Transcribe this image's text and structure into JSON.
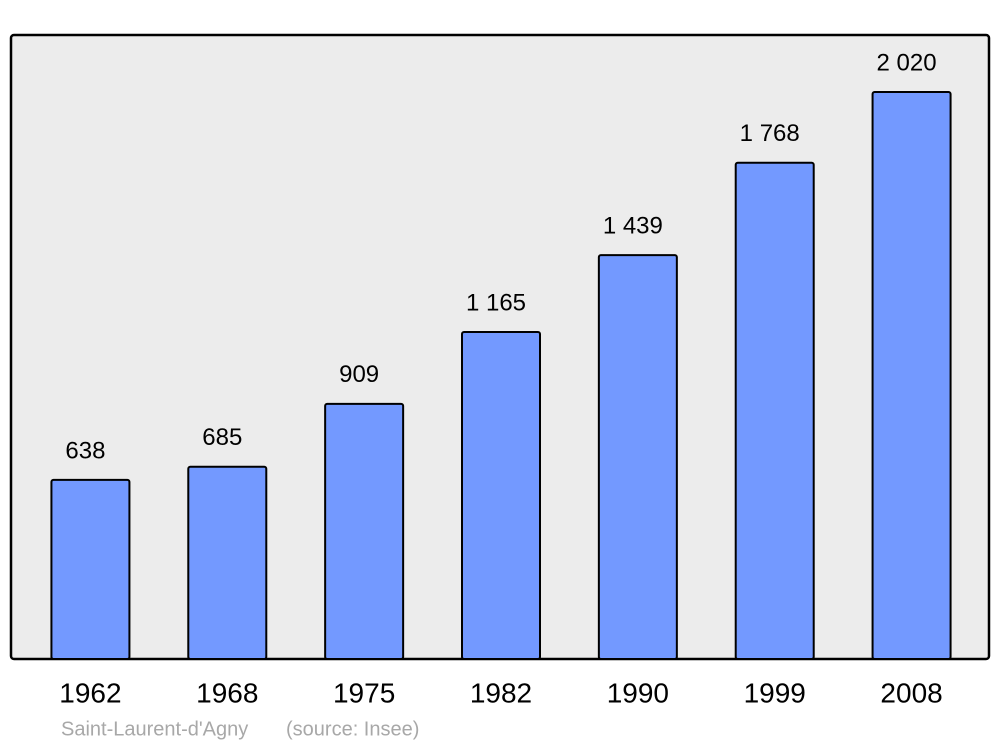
{
  "chart_data": {
    "type": "bar",
    "categories": [
      "1962",
      "1968",
      "1975",
      "1982",
      "1990",
      "1999",
      "2008"
    ],
    "values": [
      638,
      685,
      909,
      1165,
      1439,
      1768,
      2020
    ],
    "value_labels": [
      "638",
      "685",
      "909",
      "1 165",
      "1 439",
      "1 768",
      "2 020"
    ],
    "color": "#7399ff",
    "caption": "Saint-Laurent-d'Agny",
    "source": "(source: Insee)"
  }
}
